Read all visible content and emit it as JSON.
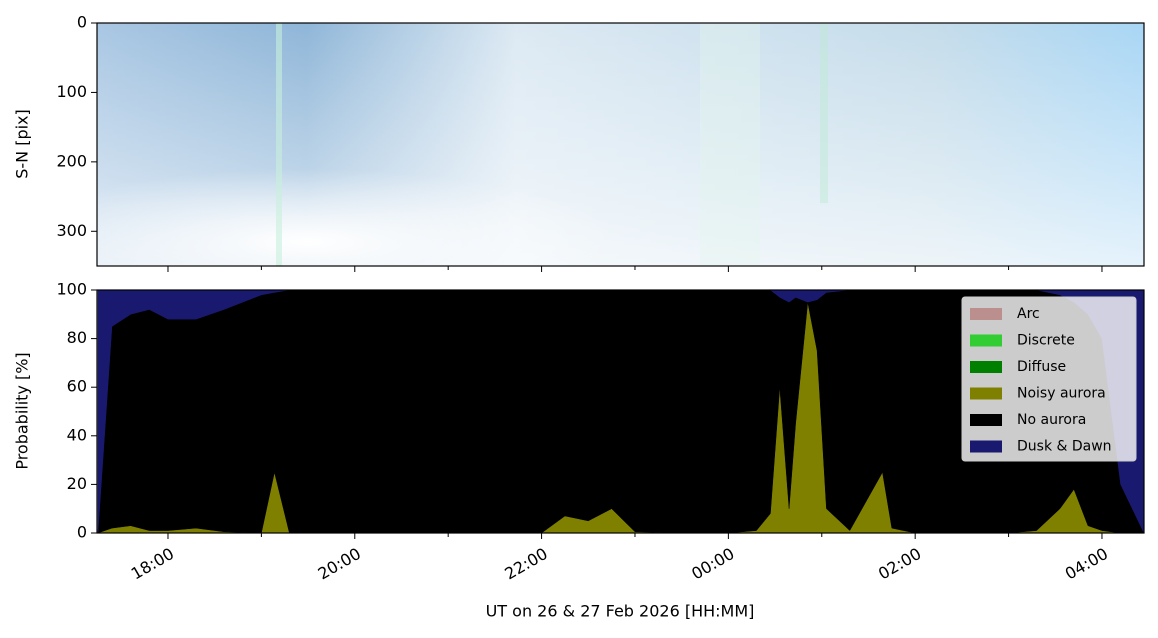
{
  "chart_data": [
    {
      "type": "image",
      "ylabel": "S-N [pix]",
      "ylim": [
        350,
        0
      ],
      "yticks": [
        0,
        100,
        200,
        300
      ]
    },
    {
      "type": "stackedarea",
      "xlabel": "UT on 26 & 27 Feb 2026 [HH:MM]",
      "ylabel": "Probability [%]",
      "x": [
        17.25,
        17.4,
        17.6,
        17.8,
        18.0,
        18.3,
        18.6,
        19.0,
        19.14,
        19.3,
        19.6,
        20.0,
        20.5,
        21.0,
        21.5,
        22.0,
        22.25,
        22.5,
        22.75,
        23.0,
        23.5,
        24.0,
        24.3,
        24.45,
        24.55,
        24.65,
        24.72,
        24.85,
        24.95,
        25.05,
        25.3,
        25.65,
        25.75,
        26.0,
        26.5,
        27.0,
        27.3,
        27.55,
        27.7,
        27.85,
        28.0,
        28.2,
        28.45
      ],
      "xlim": [
        17.24,
        28.45
      ],
      "xticks": [
        {
          "value": 18,
          "label": "18:00"
        },
        {
          "value": 20,
          "label": "20:00"
        },
        {
          "value": 22,
          "label": "22:00"
        },
        {
          "value": 24,
          "label": "00:00"
        },
        {
          "value": 26,
          "label": "02:00"
        },
        {
          "value": 28,
          "label": "04:00"
        }
      ],
      "xminorticks": [
        19,
        21,
        23,
        25,
        27
      ],
      "ylim": [
        0,
        100
      ],
      "yticks": [
        0,
        20,
        40,
        60,
        80,
        100
      ],
      "legend": "upper right",
      "series": [
        {
          "name": "Arc",
          "color": "#bc8f8f",
          "values": [
            0,
            0,
            0,
            0,
            0,
            0,
            0,
            0,
            0,
            0,
            0,
            0,
            0,
            0,
            0,
            0,
            0,
            0,
            0,
            0,
            0,
            0,
            0,
            0,
            0,
            0,
            0,
            0,
            0,
            0,
            0,
            0,
            0,
            0,
            0,
            0,
            0,
            0,
            0,
            0,
            0,
            0,
            0
          ]
        },
        {
          "name": "Discrete",
          "color": "#32cd32",
          "values": [
            0,
            0,
            0,
            0,
            0,
            0,
            0,
            0,
            0,
            0,
            0,
            0,
            0,
            0,
            0,
            0,
            0,
            0,
            0,
            0,
            0,
            0,
            0,
            0,
            0,
            0,
            0,
            0,
            0,
            0,
            0,
            0,
            0,
            0,
            0,
            0,
            0,
            0,
            0,
            0,
            0,
            0,
            0
          ]
        },
        {
          "name": "Diffuse",
          "color": "#008000",
          "values": [
            0,
            0,
            0,
            0,
            0,
            0,
            0,
            0,
            0,
            0,
            0,
            0,
            0,
            0,
            0,
            0,
            0,
            0,
            0,
            0,
            0,
            0,
            0,
            0,
            0,
            0,
            0,
            0,
            0,
            0,
            0,
            0,
            0,
            0,
            0,
            0,
            0,
            0,
            0,
            0,
            0,
            0,
            0
          ]
        },
        {
          "name": "Noisy aurora",
          "color": "#808000",
          "values": [
            0,
            2,
            3,
            1,
            1,
            2,
            0.5,
            0,
            25,
            0,
            0,
            0,
            0,
            0,
            0,
            0,
            7,
            5,
            10,
            0.5,
            0,
            0,
            1,
            8,
            60,
            10,
            45,
            95,
            75,
            10,
            1,
            25,
            2,
            0,
            0,
            0,
            1,
            10,
            18,
            3,
            1,
            0,
            0
          ]
        },
        {
          "name": "No aurora",
          "color": "#000000",
          "values": [
            0,
            83,
            87,
            91,
            87,
            86,
            91.5,
            98,
            74,
            100,
            100,
            100,
            100,
            100,
            100,
            100,
            93,
            95,
            90,
            99.5,
            100,
            100,
            99,
            92,
            37,
            85,
            52,
            0,
            21,
            89,
            99,
            75,
            98,
            100,
            100,
            100,
            99,
            88,
            77,
            87,
            79,
            20,
            0
          ]
        },
        {
          "name": "Dusk & Dawn",
          "color": "#191970",
          "values": [
            100,
            15,
            10,
            8,
            12,
            12,
            8,
            2,
            1,
            0,
            0,
            0,
            0,
            0,
            0,
            0,
            0,
            0,
            0,
            0,
            0,
            0,
            0,
            0,
            3,
            5,
            3,
            5,
            4,
            1,
            0,
            0,
            0,
            0,
            0,
            0,
            0,
            2,
            5,
            10,
            20,
            80,
            100
          ]
        }
      ]
    }
  ]
}
